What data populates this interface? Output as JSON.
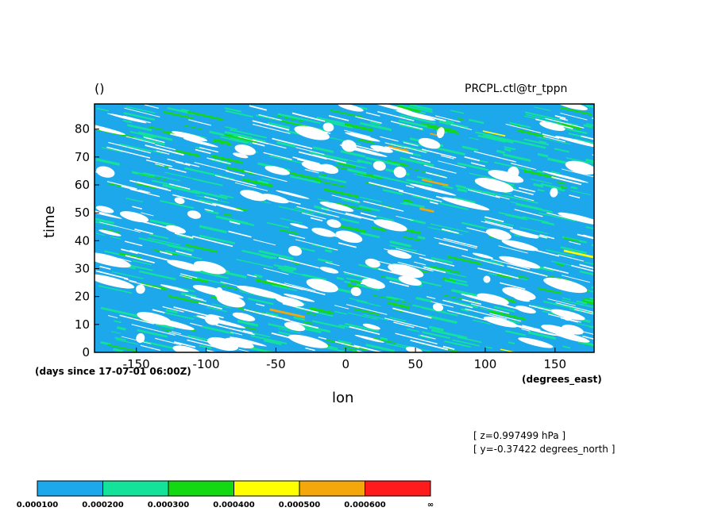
{
  "chart_data": {
    "type": "heatmap",
    "title_left": "()",
    "title_right": "PRCPL.ctl@tr_tppn",
    "xlabel": "lon",
    "ylabel": "time",
    "x_units": "(degrees_east)",
    "y_units": "(days since 17-07-01 06:00Z)",
    "xlim": [
      -180,
      178
    ],
    "ylim": [
      0,
      89
    ],
    "x_ticks": [
      -150,
      -100,
      -50,
      0,
      50,
      100,
      150
    ],
    "y_ticks": [
      0,
      10,
      20,
      30,
      40,
      50,
      60,
      70,
      80
    ],
    "info": [
      "[ z=0.997499 hPa ]",
      "[ y=-0.37422 degrees_north ]"
    ],
    "colorbar": {
      "levels": [
        "0.000100",
        "0.000200",
        "0.000300",
        "0.000400",
        "0.000500",
        "0.000600",
        "∞"
      ],
      "colors": [
        "#1ea8ec",
        "#13e39a",
        "#13d913",
        "#ffff00",
        "#f3a70a",
        "#ff1b1b"
      ]
    },
    "field_description": "noisy precipitation field dominated by lowest band with diagonal streaks and white (below-threshold) patches"
  }
}
